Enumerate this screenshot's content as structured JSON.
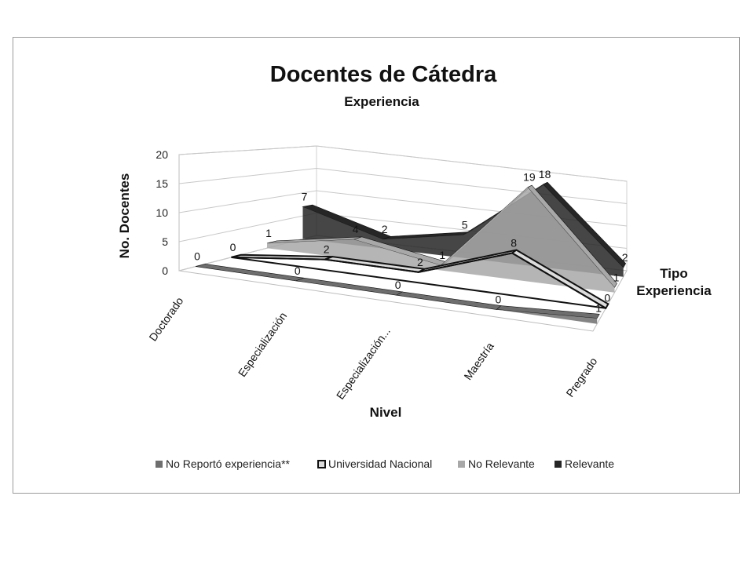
{
  "chart_data": {
    "type": "area",
    "title": "Docentes de Cátedra",
    "subtitle": "Experiencia",
    "xlabel": "Nivel",
    "ylabel": "No. Docentes",
    "zlabel_lines": [
      "Tipo",
      "Experiencia"
    ],
    "categories": [
      "Doctorado",
      "Especialización",
      "Especialización...",
      "Maestría",
      "Pregrado"
    ],
    "ylim": [
      0,
      20
    ],
    "yticks": [
      "0",
      "5",
      "10",
      "15",
      "20"
    ],
    "grid": true,
    "legend_position": "bottom",
    "series": [
      {
        "name": "No Reportó experiencia**",
        "values": [
          0,
          0,
          0,
          0,
          1
        ],
        "color": "#6e6e6e"
      },
      {
        "name": "Universidad Nacional",
        "values": [
          0,
          2,
          2,
          8,
          0
        ],
        "color": "#dcdcdc"
      },
      {
        "name": "No Relevante",
        "values": [
          1,
          4,
          1,
          19,
          1
        ],
        "color": "#a8a8a8"
      },
      {
        "name": "Relevante",
        "values": [
          7,
          2,
          5,
          18,
          2
        ],
        "color": "#262626"
      }
    ]
  }
}
